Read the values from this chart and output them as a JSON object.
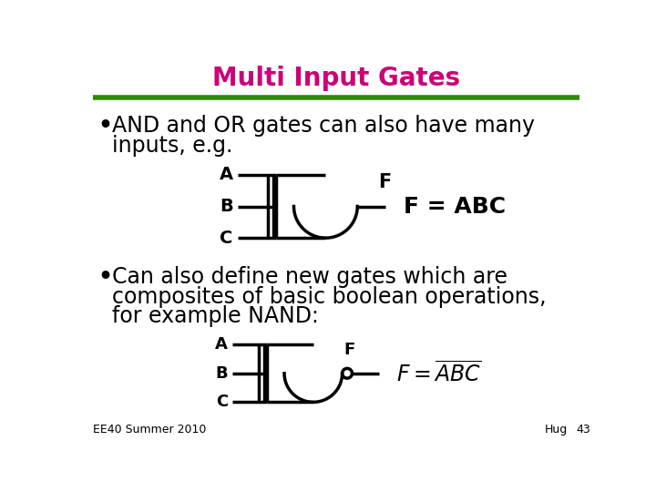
{
  "title": "Multi Input Gates",
  "title_color": "#cc0077",
  "title_fontsize": 20,
  "bg_color": "#ffffff",
  "line_color": "#2e8b00",
  "bullet1": "AND and OR gates can also have many\ninputs, e.g.",
  "bullet2": "Can also define new gates which are\ncomposites of basic boolean operations,\nfor example NAND:",
  "footer_left": "EE40 Summer 2010",
  "footer_right_1": "Hug",
  "footer_right_2": "43",
  "and_eq": "F = ABC",
  "text_color": "#000000",
  "gate_lw": 2.5
}
